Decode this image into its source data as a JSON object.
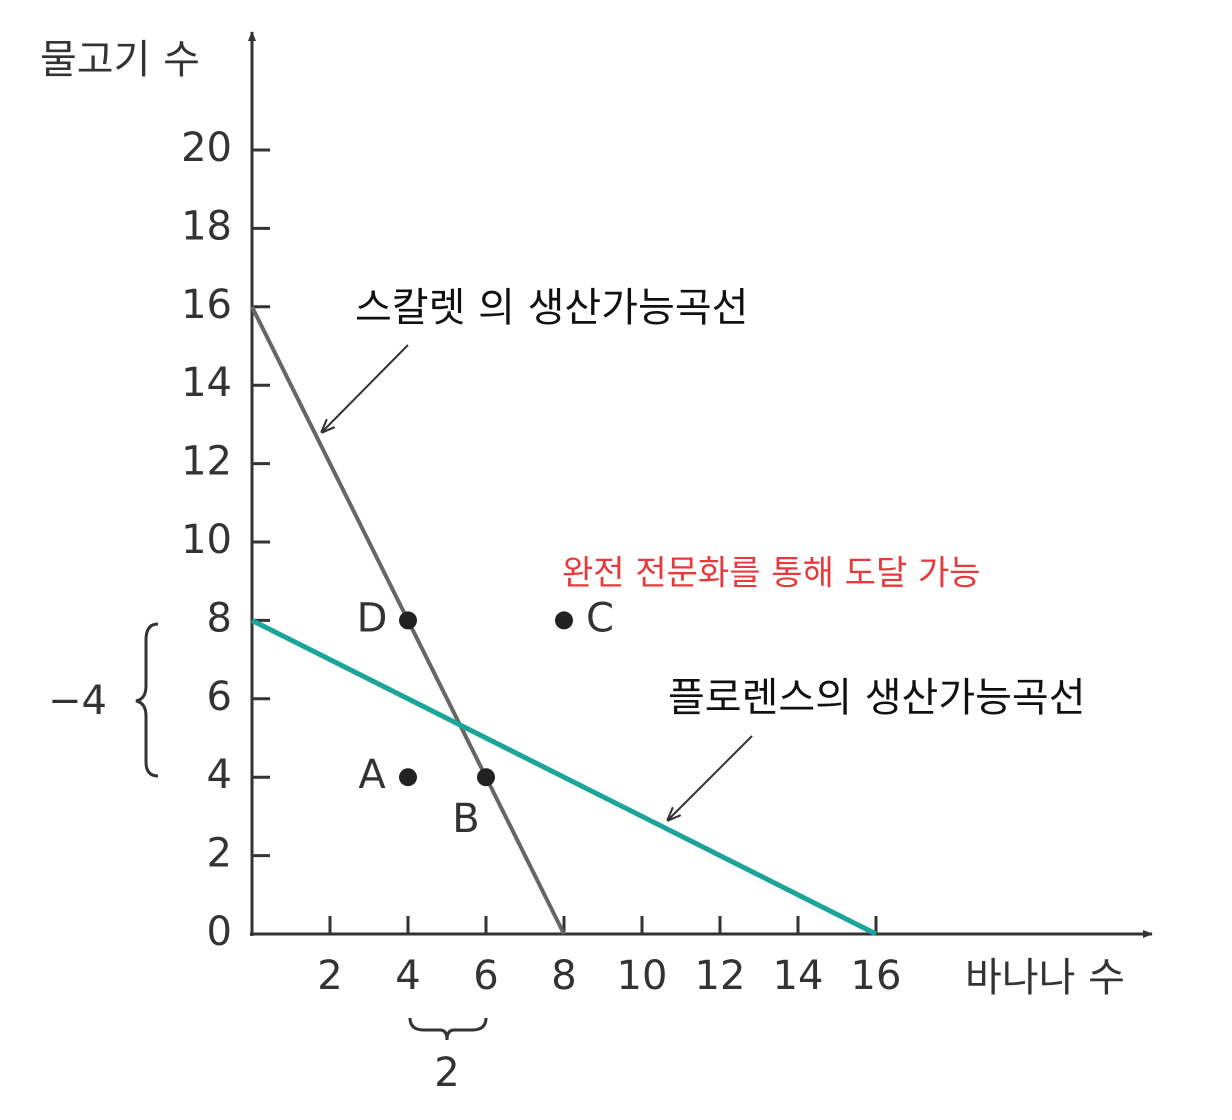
{
  "chart_data": {
    "type": "line",
    "x_label": "바나나 수",
    "y_label": "물고기 수",
    "xlim": [
      0,
      23
    ],
    "ylim": [
      0,
      23
    ],
    "xticks": [
      2,
      4,
      6,
      8,
      10,
      12,
      14,
      16
    ],
    "yticks": [
      0,
      2,
      4,
      6,
      8,
      10,
      12,
      14,
      16,
      18,
      20
    ],
    "series": [
      {
        "name": "스칼렛 의 생산가능곡선",
        "color": "#666666",
        "x": [
          0,
          8
        ],
        "values": [
          16,
          0
        ]
      },
      {
        "name": "플로렌스의 생산가능곡선",
        "color": "#1aa59a",
        "x": [
          0,
          16
        ],
        "values": [
          8,
          0
        ]
      }
    ],
    "points": [
      {
        "label": "A",
        "x": 4,
        "y": 4
      },
      {
        "label": "B",
        "x": 6,
        "y": 4
      },
      {
        "label": "C",
        "x": 8,
        "y": 8
      },
      {
        "label": "D",
        "x": 4,
        "y": 8
      }
    ],
    "annotation": "완전 전문화를 통해 도달 가능",
    "y_brace_label": "−4",
    "x_brace_label": "2"
  }
}
